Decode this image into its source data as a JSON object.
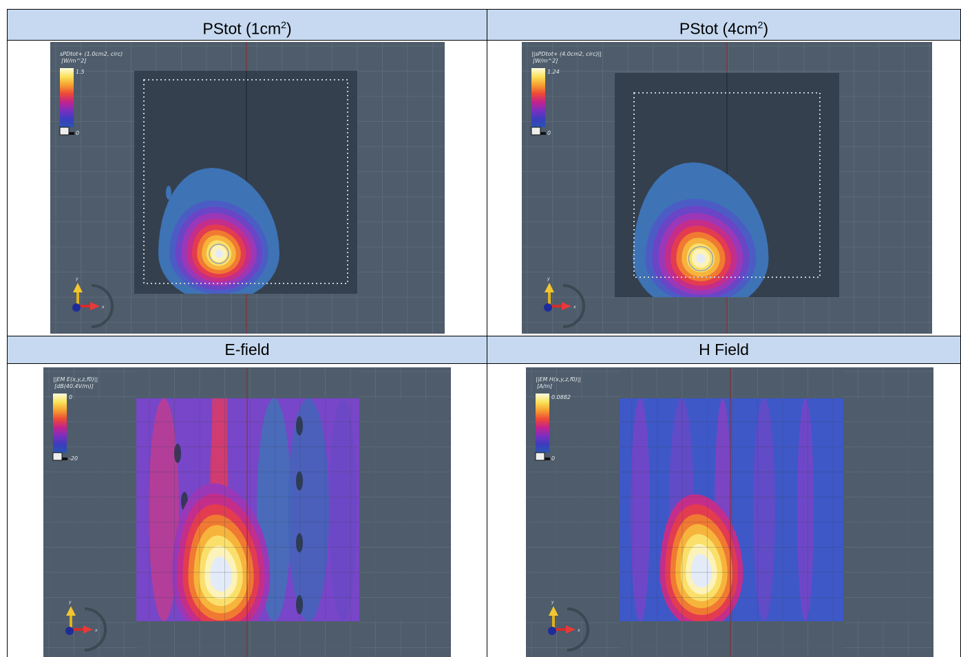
{
  "panels": [
    {
      "header": {
        "text": "PStot (1cm",
        "sup": "2",
        "tail": ")"
      },
      "plot": {
        "quantity": "sPDtot+ (1.0cm2, circ)",
        "unit": "[W/m^2]",
        "max": "1.5",
        "min": "0",
        "axis_y": "y",
        "axis_x": "x"
      }
    },
    {
      "header": {
        "text": "PStot (4cm",
        "sup": "2",
        "tail": ")"
      },
      "plot": {
        "quantity": "||sPDtot+ (4.0cm2, circ)||",
        "unit": "[W/m^2]",
        "max": "1.24",
        "min": "0",
        "axis_y": "y",
        "axis_x": "x"
      }
    },
    {
      "header": {
        "text": "E-field"
      },
      "plot": {
        "quantity": "||EM E(x,y,z,f0)||",
        "unit": "[dB(40.4V/m)]",
        "max": "0",
        "min": "-20",
        "axis_y": "y",
        "axis_x": "x"
      }
    },
    {
      "header": {
        "text": "H Field"
      },
      "plot": {
        "quantity": "||EM H(x,y,z,f0)||",
        "unit": "[A/m]",
        "max": "0.0882",
        "min": "0",
        "axis_y": "y",
        "axis_x": "x"
      }
    }
  ]
}
